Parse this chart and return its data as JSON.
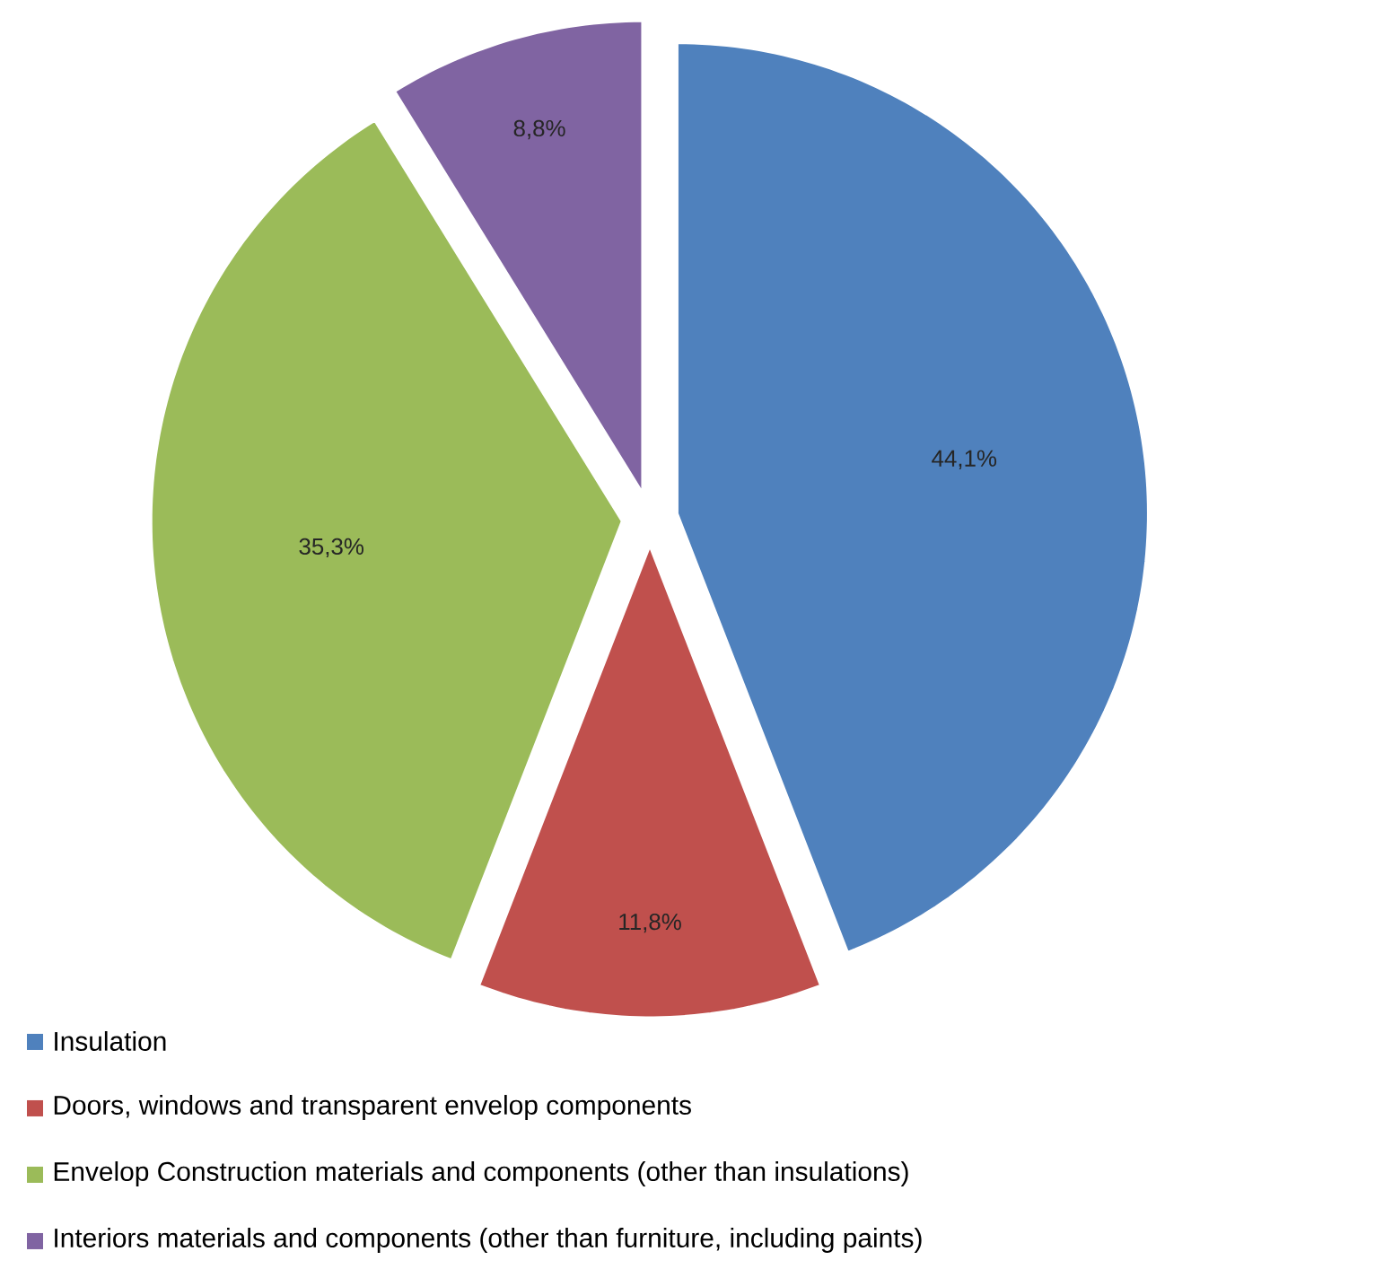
{
  "chart_data": {
    "type": "pie",
    "categories": [
      "Insulation",
      "Doors, windows and transparent envelop components",
      "Envelop Construction materials and components  (other than insulations)",
      "Interiors materials and components (other than furniture, including paints)"
    ],
    "values": [
      44.1,
      11.8,
      35.3,
      8.8
    ],
    "value_labels": [
      "44,1%",
      "11,8%",
      "35,3%",
      "8,8%"
    ],
    "colors": [
      "#4f81bd",
      "#c0504d",
      "#9bbb59",
      "#8064a2"
    ],
    "legend": "bottom"
  }
}
